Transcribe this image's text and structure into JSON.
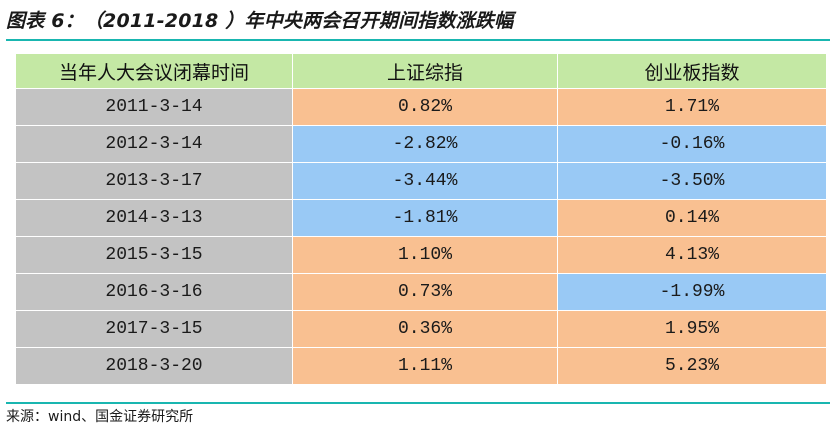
{
  "title": "图表 6：（2011-2018 ）年中央两会召开期间指数涨跌幅",
  "table": {
    "headers": [
      "当年人大会议闭幕时间",
      "上证综指",
      "创业板指数"
    ],
    "rows": [
      {
        "date": "2011-3-14",
        "sh": "0.82%",
        "cyb": "1.71%"
      },
      {
        "date": "2012-3-14",
        "sh": "-2.82%",
        "cyb": "-0.16%"
      },
      {
        "date": "2013-3-17",
        "sh": "-3.44%",
        "cyb": "-3.50%"
      },
      {
        "date": "2014-3-13",
        "sh": "-1.81%",
        "cyb": "0.14%"
      },
      {
        "date": "2015-3-15",
        "sh": "1.10%",
        "cyb": "4.13%"
      },
      {
        "date": "2016-3-16",
        "sh": "0.73%",
        "cyb": "-1.99%"
      },
      {
        "date": "2017-3-15",
        "sh": "0.36%",
        "cyb": "1.95%"
      },
      {
        "date": "2018-3-20",
        "sh": "1.11%",
        "cyb": "5.23%"
      }
    ]
  },
  "source": "来源：wind、国金证券研究所",
  "colors": {
    "rule": "#19b6b0",
    "header_bg": "#c4e8a4",
    "date_bg": "#c3c3c3",
    "positive_bg": "#f9c091",
    "negative_bg": "#99c9f5"
  }
}
